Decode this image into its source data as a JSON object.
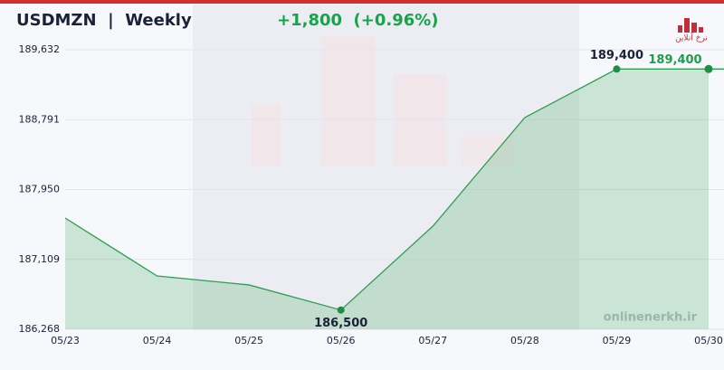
{
  "chart_data": {
    "type": "area",
    "title": "USDMZN  |  Weekly",
    "change": "+1,800  (+0.96%)",
    "categories": [
      "05/23",
      "05/24",
      "05/25",
      "05/26",
      "05/27",
      "05/28",
      "05/29",
      "05/30"
    ],
    "series": [
      {
        "name": "USDMZN",
        "color": "#2e9e4f",
        "values": [
          187607,
          186910,
          186802,
          186500,
          187509,
          188816,
          189400,
          189400
        ],
        "value_labels": [
          null,
          null,
          null,
          "186,500",
          null,
          null,
          "189,400",
          "189,400"
        ]
      }
    ],
    "ylim": [
      186268,
      189632
    ],
    "yticks": [
      {
        "value": 186268,
        "label": "186,268"
      },
      {
        "value": 187109,
        "label": "187,109"
      },
      {
        "value": 187950,
        "label": "187,950"
      },
      {
        "value": 188791,
        "label": "188,791"
      },
      {
        "value": 189632,
        "label": "189,632"
      }
    ],
    "grid": true,
    "watermark": "onlinenerkh.ir",
    "logo_text": "نرخ آنلاین"
  }
}
